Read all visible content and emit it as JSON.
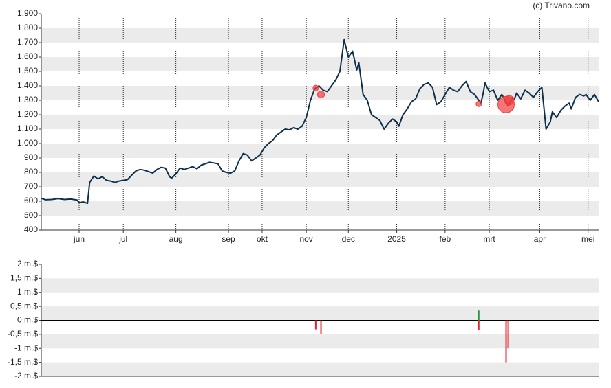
{
  "source": "(c) Trivano.com",
  "chart_data": [
    {
      "type": "line",
      "x": [
        0,
        2,
        5,
        8,
        11,
        14,
        17,
        18,
        20,
        22,
        23,
        25,
        27,
        29,
        31,
        33,
        35,
        37,
        39,
        41,
        43,
        45,
        47,
        49,
        51,
        53,
        55,
        57,
        59,
        61,
        62,
        64,
        66,
        68,
        70,
        72,
        74,
        76,
        78,
        80,
        82,
        84,
        86,
        88,
        90,
        92,
        94,
        96,
        98,
        100,
        102,
        104,
        106,
        108,
        110,
        112,
        114,
        116,
        118,
        120,
        122,
        124,
        126,
        128,
        130,
        132,
        134,
        136,
        138,
        140,
        142,
        144,
        146,
        148,
        150,
        151,
        153,
        155,
        157,
        159,
        161,
        163,
        165,
        167,
        169,
        170,
        172,
        174,
        176,
        178,
        180,
        182,
        184,
        186,
        188,
        190,
        192,
        194,
        196,
        198,
        200,
        202,
        204,
        206,
        208,
        209,
        210,
        211,
        213,
        215,
        217,
        219,
        221,
        222,
        224,
        225,
        226,
        228,
        230,
        232,
        234,
        236,
        238,
        239,
        240,
        242,
        243,
        245,
        247,
        249,
        251,
        252,
        254,
        256,
        258,
        259,
        261,
        263,
        265
      ],
      "values": [
        620,
        610,
        612,
        618,
        612,
        615,
        608,
        590,
        595,
        585,
        730,
        775,
        755,
        770,
        745,
        740,
        730,
        740,
        745,
        750,
        780,
        810,
        820,
        815,
        805,
        795,
        820,
        835,
        830,
        770,
        760,
        790,
        830,
        820,
        830,
        840,
        825,
        850,
        860,
        870,
        865,
        860,
        810,
        800,
        795,
        810,
        880,
        930,
        920,
        880,
        900,
        920,
        970,
        1000,
        1020,
        1060,
        1080,
        1100,
        1095,
        1110,
        1100,
        1120,
        1180,
        1300,
        1380,
        1400,
        1370,
        1360,
        1400,
        1440,
        1500,
        1720,
        1600,
        1640,
        1510,
        1560,
        1340,
        1300,
        1200,
        1180,
        1160,
        1100,
        1140,
        1170,
        1150,
        1120,
        1200,
        1240,
        1290,
        1310,
        1380,
        1410,
        1420,
        1390,
        1270,
        1290,
        1340,
        1390,
        1370,
        1360,
        1400,
        1430,
        1360,
        1340,
        1300,
        1280,
        1340,
        1420,
        1360,
        1370,
        1300,
        1340,
        1290,
        1260,
        1320,
        1310,
        1350,
        1310,
        1370,
        1350,
        1320,
        1360,
        1390,
        1250,
        1100,
        1150,
        1220,
        1180,
        1230,
        1260,
        1280,
        1240,
        1320,
        1340,
        1330,
        1340,
        1300,
        1340,
        1290
      ],
      "color": "#0d2f4a",
      "markers": {
        "x": [
          130.5,
          133,
          208,
          221,
          222.5
        ],
        "values": [
          1385,
          1340,
          1275,
          1270,
          1300
        ],
        "sizes": [
          1,
          1.6,
          1,
          9,
          3
        ],
        "color": "#f03c3c"
      },
      "xlim": [
        0,
        265
      ],
      "xticks": [
        {
          "value": 18,
          "label": "jun"
        },
        {
          "value": 39,
          "label": "jul"
        },
        {
          "value": 64,
          "label": "aug"
        },
        {
          "value": 89,
          "label": "sep"
        },
        {
          "value": 105,
          "label": "okt"
        },
        {
          "value": 126,
          "label": "nov"
        },
        {
          "value": 146,
          "label": "dec"
        },
        {
          "value": 169,
          "label": "2025"
        },
        {
          "value": 192,
          "label": "feb"
        },
        {
          "value": 213,
          "label": "mrt"
        },
        {
          "value": 237,
          "label": "apr"
        },
        {
          "value": 260,
          "label": "mei"
        }
      ],
      "ylim": [
        400,
        1900
      ],
      "yticks": [
        400,
        500,
        600,
        700,
        800,
        900,
        {
          "value": 1000,
          "label": "1.000"
        },
        {
          "value": 1100,
          "label": "1.100"
        },
        {
          "value": 1200,
          "label": "1.200"
        },
        {
          "value": 1300,
          "label": "1.300"
        },
        {
          "value": 1400,
          "label": "1.400"
        },
        {
          "value": 1500,
          "label": "1.500"
        },
        {
          "value": 1600,
          "label": "1.600"
        },
        {
          "value": 1700,
          "label": "1.700"
        },
        {
          "value": 1800,
          "label": "1.800"
        },
        {
          "value": 1900,
          "label": "1.900"
        }
      ],
      "grid": true
    },
    {
      "type": "bar",
      "x": [
        130.5,
        133,
        208,
        208,
        221,
        222
      ],
      "values": [
        -0.32,
        -0.48,
        0.35,
        -0.35,
        -1.5,
        -1.0
      ],
      "colors": [
        "#e8202a",
        "#e8202a",
        "#1e9a3c",
        "#e8202a",
        "#e8202a",
        "#e8202a"
      ],
      "xlim": [
        0,
        265
      ],
      "ylim": [
        -2,
        2
      ],
      "yticks": [
        {
          "value": -2,
          "label": "-2 m.$"
        },
        {
          "value": -1.5,
          "label": "-1,5 m.$"
        },
        {
          "value": -1,
          "label": "-1 m.$"
        },
        {
          "value": -0.5,
          "label": "-0,5 m.$"
        },
        {
          "value": 0,
          "label": "0 m.$"
        },
        {
          "value": 0.5,
          "label": "0,5 m.$"
        },
        {
          "value": 1,
          "label": "1 m.$"
        },
        {
          "value": 1.5,
          "label": "1,5 m.$"
        },
        {
          "value": 2,
          "label": "2 m.$"
        }
      ],
      "grid": true
    }
  ]
}
